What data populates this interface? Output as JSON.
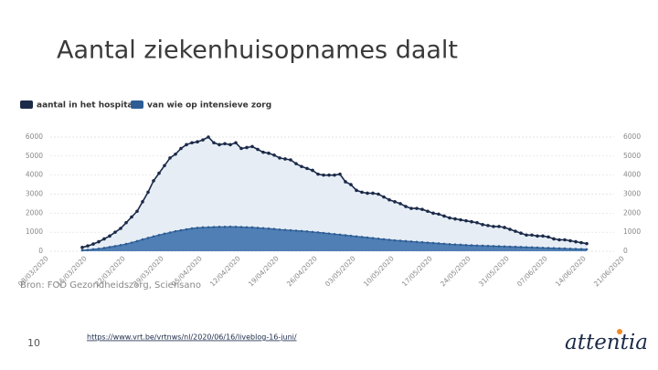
{
  "slide": {
    "title": "Aantal ziekenhuisopnames daalt",
    "source": "Bron: FOD Gezondheidszorg, Sciensano",
    "page_number": "10",
    "link": "https://www.vrt.be/vrtnws/nl/2020/06/16/liveblog-16-juni/",
    "logo": "attentia"
  },
  "chart_data": {
    "type": "area",
    "x": [
      "15/03/2020",
      "16/03/2020",
      "17/03/2020",
      "18/03/2020",
      "19/03/2020",
      "20/03/2020",
      "21/03/2020",
      "22/03/2020",
      "23/03/2020",
      "24/03/2020",
      "25/03/2020",
      "26/03/2020",
      "27/03/2020",
      "28/03/2020",
      "29/03/2020",
      "30/03/2020",
      "31/03/2020",
      "01/04/2020",
      "02/04/2020",
      "03/04/2020",
      "04/04/2020",
      "05/04/2020",
      "06/04/2020",
      "07/04/2020",
      "08/04/2020",
      "09/04/2020",
      "10/04/2020",
      "11/04/2020",
      "12/04/2020",
      "13/04/2020",
      "14/04/2020",
      "15/04/2020",
      "16/04/2020",
      "17/04/2020",
      "18/04/2020",
      "19/04/2020",
      "20/04/2020",
      "21/04/2020",
      "22/04/2020",
      "23/04/2020",
      "24/04/2020",
      "25/04/2020",
      "26/04/2020",
      "27/04/2020",
      "28/04/2020",
      "29/04/2020",
      "30/04/2020",
      "01/05/2020",
      "02/05/2020",
      "03/05/2020",
      "04/05/2020",
      "05/05/2020",
      "06/05/2020",
      "07/05/2020",
      "08/05/2020",
      "09/05/2020",
      "10/05/2020",
      "11/05/2020",
      "12/05/2020",
      "13/05/2020",
      "14/05/2020",
      "15/05/2020",
      "16/05/2020",
      "17/05/2020",
      "18/05/2020",
      "19/05/2020",
      "20/05/2020",
      "21/05/2020",
      "22/05/2020",
      "23/05/2020",
      "24/05/2020",
      "25/05/2020",
      "26/05/2020",
      "27/05/2020",
      "28/05/2020",
      "29/05/2020",
      "30/05/2020",
      "31/05/2020",
      "01/06/2020",
      "02/06/2020",
      "03/06/2020",
      "04/06/2020",
      "05/06/2020",
      "06/06/2020",
      "07/06/2020",
      "08/06/2020",
      "09/06/2020",
      "10/06/2020",
      "11/06/2020",
      "12/06/2020",
      "13/06/2020",
      "14/06/2020",
      "15/06/2020"
    ],
    "series": [
      {
        "name": "aantal in het hospitaal",
        "color": "#1b2a48",
        "fill": "#e6edf5",
        "values": [
          200,
          280,
          380,
          500,
          650,
          800,
          1000,
          1200,
          1500,
          1800,
          2100,
          2600,
          3100,
          3700,
          4100,
          4500,
          4900,
          5100,
          5400,
          5600,
          5700,
          5750,
          5850,
          6000,
          5700,
          5600,
          5650,
          5600,
          5700,
          5400,
          5450,
          5500,
          5350,
          5200,
          5150,
          5050,
          4900,
          4850,
          4800,
          4600,
          4450,
          4350,
          4250,
          4050,
          4000,
          4000,
          4000,
          4050,
          3650,
          3500,
          3200,
          3100,
          3050,
          3050,
          3000,
          2850,
          2700,
          2600,
          2500,
          2350,
          2250,
          2250,
          2200,
          2100,
          2000,
          1950,
          1850,
          1750,
          1700,
          1650,
          1600,
          1550,
          1500,
          1400,
          1350,
          1300,
          1300,
          1250,
          1150,
          1050,
          950,
          850,
          850,
          800,
          800,
          750,
          650,
          600,
          600,
          550,
          500,
          450,
          400
        ]
      },
      {
        "name": "van wie op intensieve zorg",
        "color": "#2d5d94",
        "fill": "#4f7fb4",
        "values": [
          50,
          70,
          100,
          130,
          170,
          220,
          270,
          320,
          380,
          450,
          530,
          620,
          700,
          780,
          850,
          920,
          980,
          1050,
          1100,
          1150,
          1200,
          1230,
          1250,
          1260,
          1270,
          1280,
          1280,
          1285,
          1280,
          1270,
          1260,
          1250,
          1230,
          1210,
          1190,
          1170,
          1140,
          1120,
          1100,
          1080,
          1060,
          1040,
          1010,
          990,
          960,
          930,
          900,
          870,
          840,
          810,
          780,
          750,
          720,
          690,
          660,
          630,
          600,
          570,
          550,
          530,
          510,
          490,
          470,
          450,
          430,
          410,
          390,
          370,
          350,
          340,
          320,
          310,
          300,
          290,
          280,
          270,
          260,
          250,
          240,
          230,
          220,
          210,
          200,
          190,
          180,
          170,
          160,
          150,
          140,
          130,
          120,
          110,
          100
        ]
      }
    ],
    "xticks": [
      "08/03/2020",
      "15/03/2020",
      "22/03/2020",
      "29/03/2020",
      "05/04/2020",
      "12/04/2020",
      "19/04/2020",
      "26/04/2020",
      "03/05/2020",
      "10/05/2020",
      "17/05/2020",
      "24/05/2020",
      "31/05/2020",
      "07/06/2020",
      "14/06/2020",
      "21/06/2020"
    ],
    "ylim": [
      0,
      6000
    ],
    "yticks": [
      0,
      1000,
      2000,
      3000,
      4000,
      5000,
      6000
    ],
    "y2lim": [
      0,
      6000
    ],
    "y2ticks": [
      0,
      1000,
      2000,
      3000,
      4000,
      5000,
      6000
    ],
    "grid": true,
    "legend": "top-left"
  }
}
